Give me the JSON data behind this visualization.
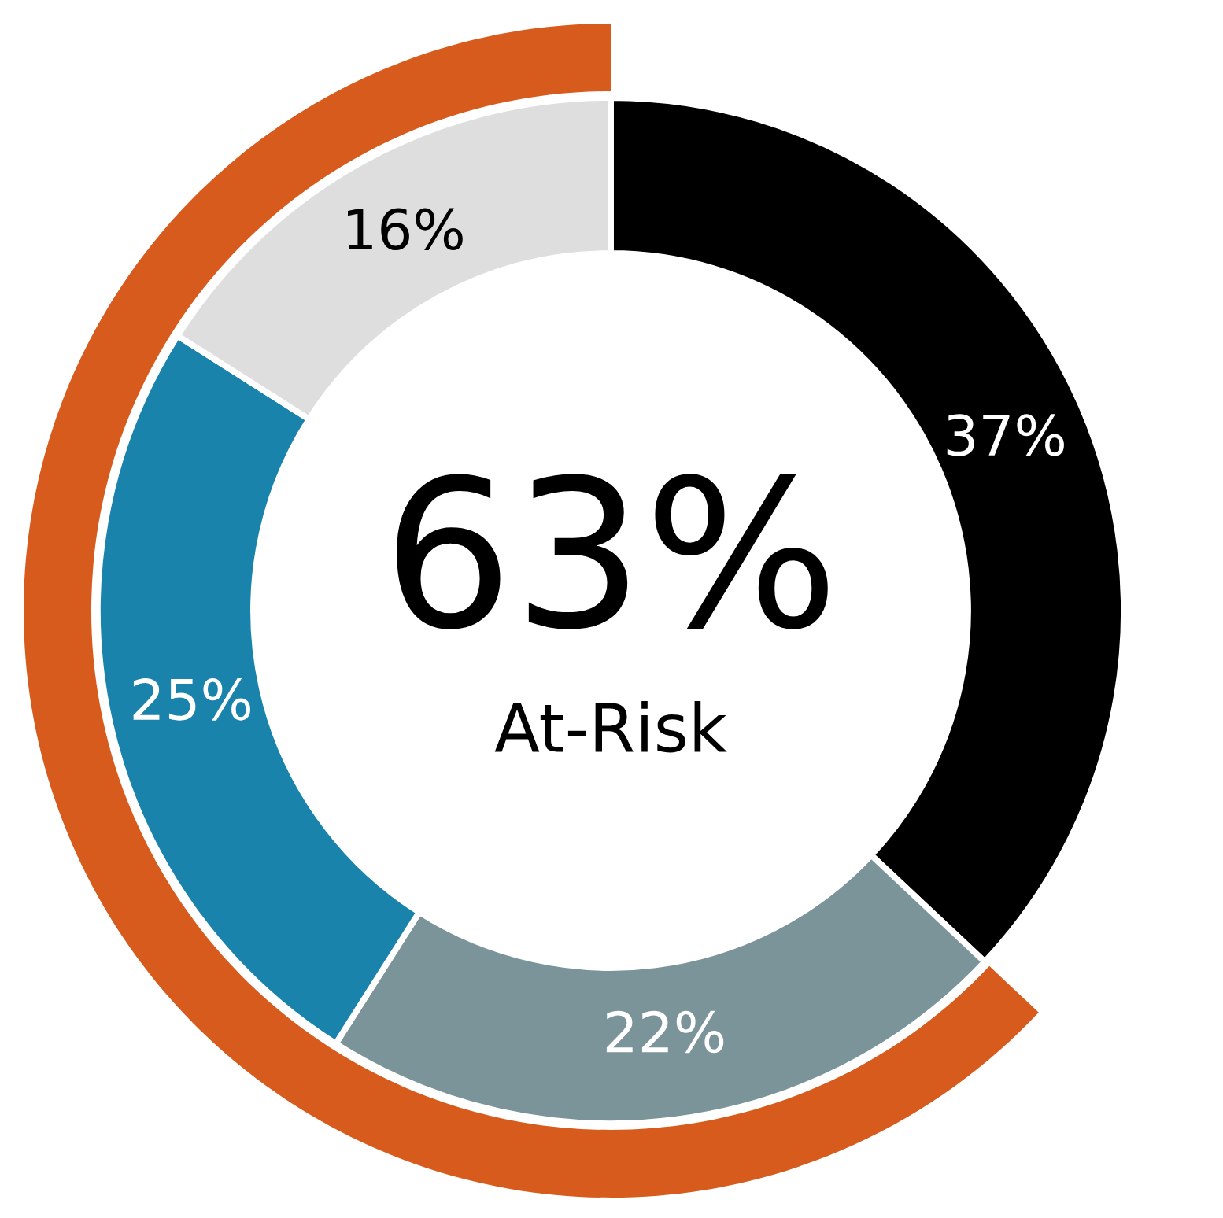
{
  "chart_data": [
    {
      "type": "donut",
      "categories": [
        null,
        null,
        null,
        null
      ],
      "values": [
        37,
        22,
        25,
        16
      ],
      "colors": [
        "#000000",
        "#7a9499",
        "#1a83ab",
        "#dedede"
      ],
      "value_labels": [
        "37%",
        "22%",
        "25%",
        "16%"
      ]
    },
    {
      "type": "other",
      "values": [
        63
      ],
      "color": "#d85b1e",
      "value_labels": [
        "63%"
      ],
      "annotations": [
        "At-Risk"
      ]
    }
  ]
}
